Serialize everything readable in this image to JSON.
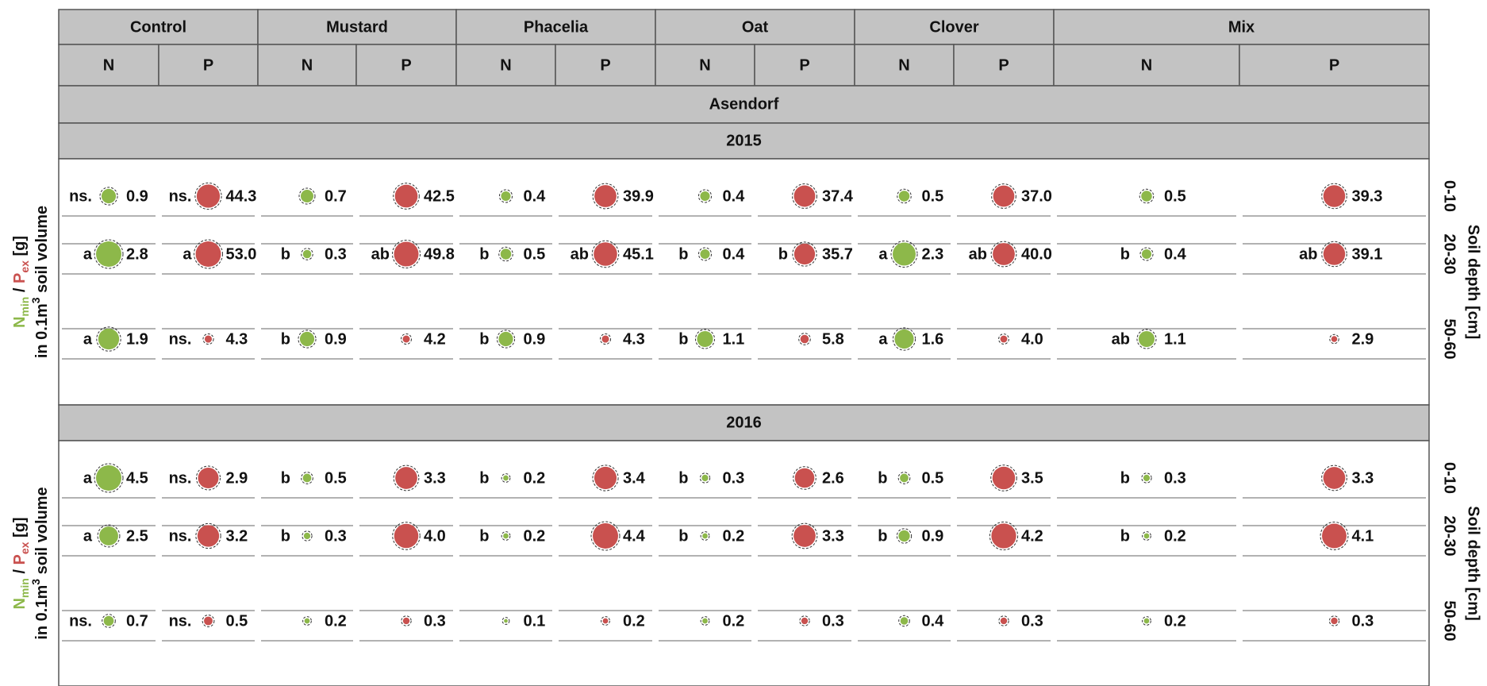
{
  "columns": [
    "Control",
    "Mustard",
    "Phacelia",
    "Oat",
    "Clover",
    "Mix"
  ],
  "nutrients": [
    "N",
    "P"
  ],
  "location": "Asendorf",
  "y_label": {
    "n": "N",
    "n_sub": "min",
    "sep": " / ",
    "p": "P",
    "p_sub": "ex",
    "unit": " [g]",
    "line2": "in 0.1m",
    "line2_sup": "3",
    "line2_end": " soil volume"
  },
  "depth_label": "Soil depth [cm]",
  "depths": [
    "0-10",
    "20-30",
    "50-60"
  ],
  "colors": {
    "N": "#8db84a",
    "P": "#c9514f"
  },
  "years": [
    {
      "year": "2015",
      "rows": [
        [
          {
            "letter": "ns.",
            "value": 0.9
          },
          {
            "letter": "ns.",
            "value": 44.3
          },
          {
            "value": 0.7
          },
          {
            "value": 42.5
          },
          {
            "value": 0.4
          },
          {
            "value": 39.9
          },
          {
            "value": 0.4
          },
          {
            "value": 37.4
          },
          {
            "value": 0.5
          },
          {
            "value": 37,
            "label": "37.0"
          },
          {
            "value": 0.5
          },
          {
            "value": 39.3
          }
        ],
        [
          {
            "letter": "a",
            "value": 2.8
          },
          {
            "letter": "a",
            "value": 53,
            "label": "53.0"
          },
          {
            "letter": "b",
            "value": 0.3
          },
          {
            "letter": "ab",
            "value": 49.8
          },
          {
            "letter": "b",
            "value": 0.5
          },
          {
            "letter": "ab",
            "value": 45.1
          },
          {
            "letter": "b",
            "value": 0.4
          },
          {
            "letter": "b",
            "value": 35.7
          },
          {
            "letter": "a",
            "value": 2.3
          },
          {
            "letter": "ab",
            "value": 40,
            "label": "40.0"
          },
          {
            "letter": "b",
            "value": 0.4
          },
          {
            "letter": "ab",
            "value": 39.1
          }
        ],
        [
          {
            "letter": "a",
            "value": 1.9
          },
          {
            "letter": "ns.",
            "value": 4.3
          },
          {
            "letter": "b",
            "value": 0.9
          },
          {
            "value": 4.2
          },
          {
            "letter": "b",
            "value": 0.9
          },
          {
            "value": 4.3
          },
          {
            "letter": "b",
            "value": 1.1
          },
          {
            "value": 5.8
          },
          {
            "letter": "a",
            "value": 1.6
          },
          {
            "value": 4,
            "label": "4.0"
          },
          {
            "letter": "ab",
            "value": 1.1
          },
          {
            "value": 2.9
          }
        ]
      ]
    },
    {
      "year": "2016",
      "rows": [
        [
          {
            "letter": "a",
            "value": 4.5
          },
          {
            "letter": "ns.",
            "value": 2.9
          },
          {
            "letter": "b",
            "value": 0.5
          },
          {
            "value": 3.3
          },
          {
            "letter": "b",
            "value": 0.2
          },
          {
            "value": 3.4
          },
          {
            "letter": "b",
            "value": 0.3
          },
          {
            "value": 2.6
          },
          {
            "letter": "b",
            "value": 0.5
          },
          {
            "value": 3.5
          },
          {
            "letter": "b",
            "value": 0.3
          },
          {
            "value": 3.3
          }
        ],
        [
          {
            "letter": "a",
            "value": 2.5
          },
          {
            "letter": "ns.",
            "value": 3.2
          },
          {
            "letter": "b",
            "value": 0.3
          },
          {
            "value": 4,
            "label": "4.0"
          },
          {
            "letter": "b",
            "value": 0.2
          },
          {
            "value": 4.4
          },
          {
            "letter": "b",
            "value": 0.2
          },
          {
            "value": 3.3
          },
          {
            "letter": "b",
            "value": 0.9
          },
          {
            "value": 4.2
          },
          {
            "letter": "b",
            "value": 0.2
          },
          {
            "value": 4.1
          }
        ],
        [
          {
            "letter": "ns.",
            "value": 0.7
          },
          {
            "letter": "ns.",
            "value": 0.5
          },
          {
            "value": 0.2
          },
          {
            "value": 0.3
          },
          {
            "value": 0.1
          },
          {
            "value": 0.2
          },
          {
            "value": 0.2
          },
          {
            "value": 0.3
          },
          {
            "value": 0.4
          },
          {
            "value": 0.3
          },
          {
            "value": 0.2
          },
          {
            "value": 0.3
          }
        ]
      ]
    }
  ]
}
